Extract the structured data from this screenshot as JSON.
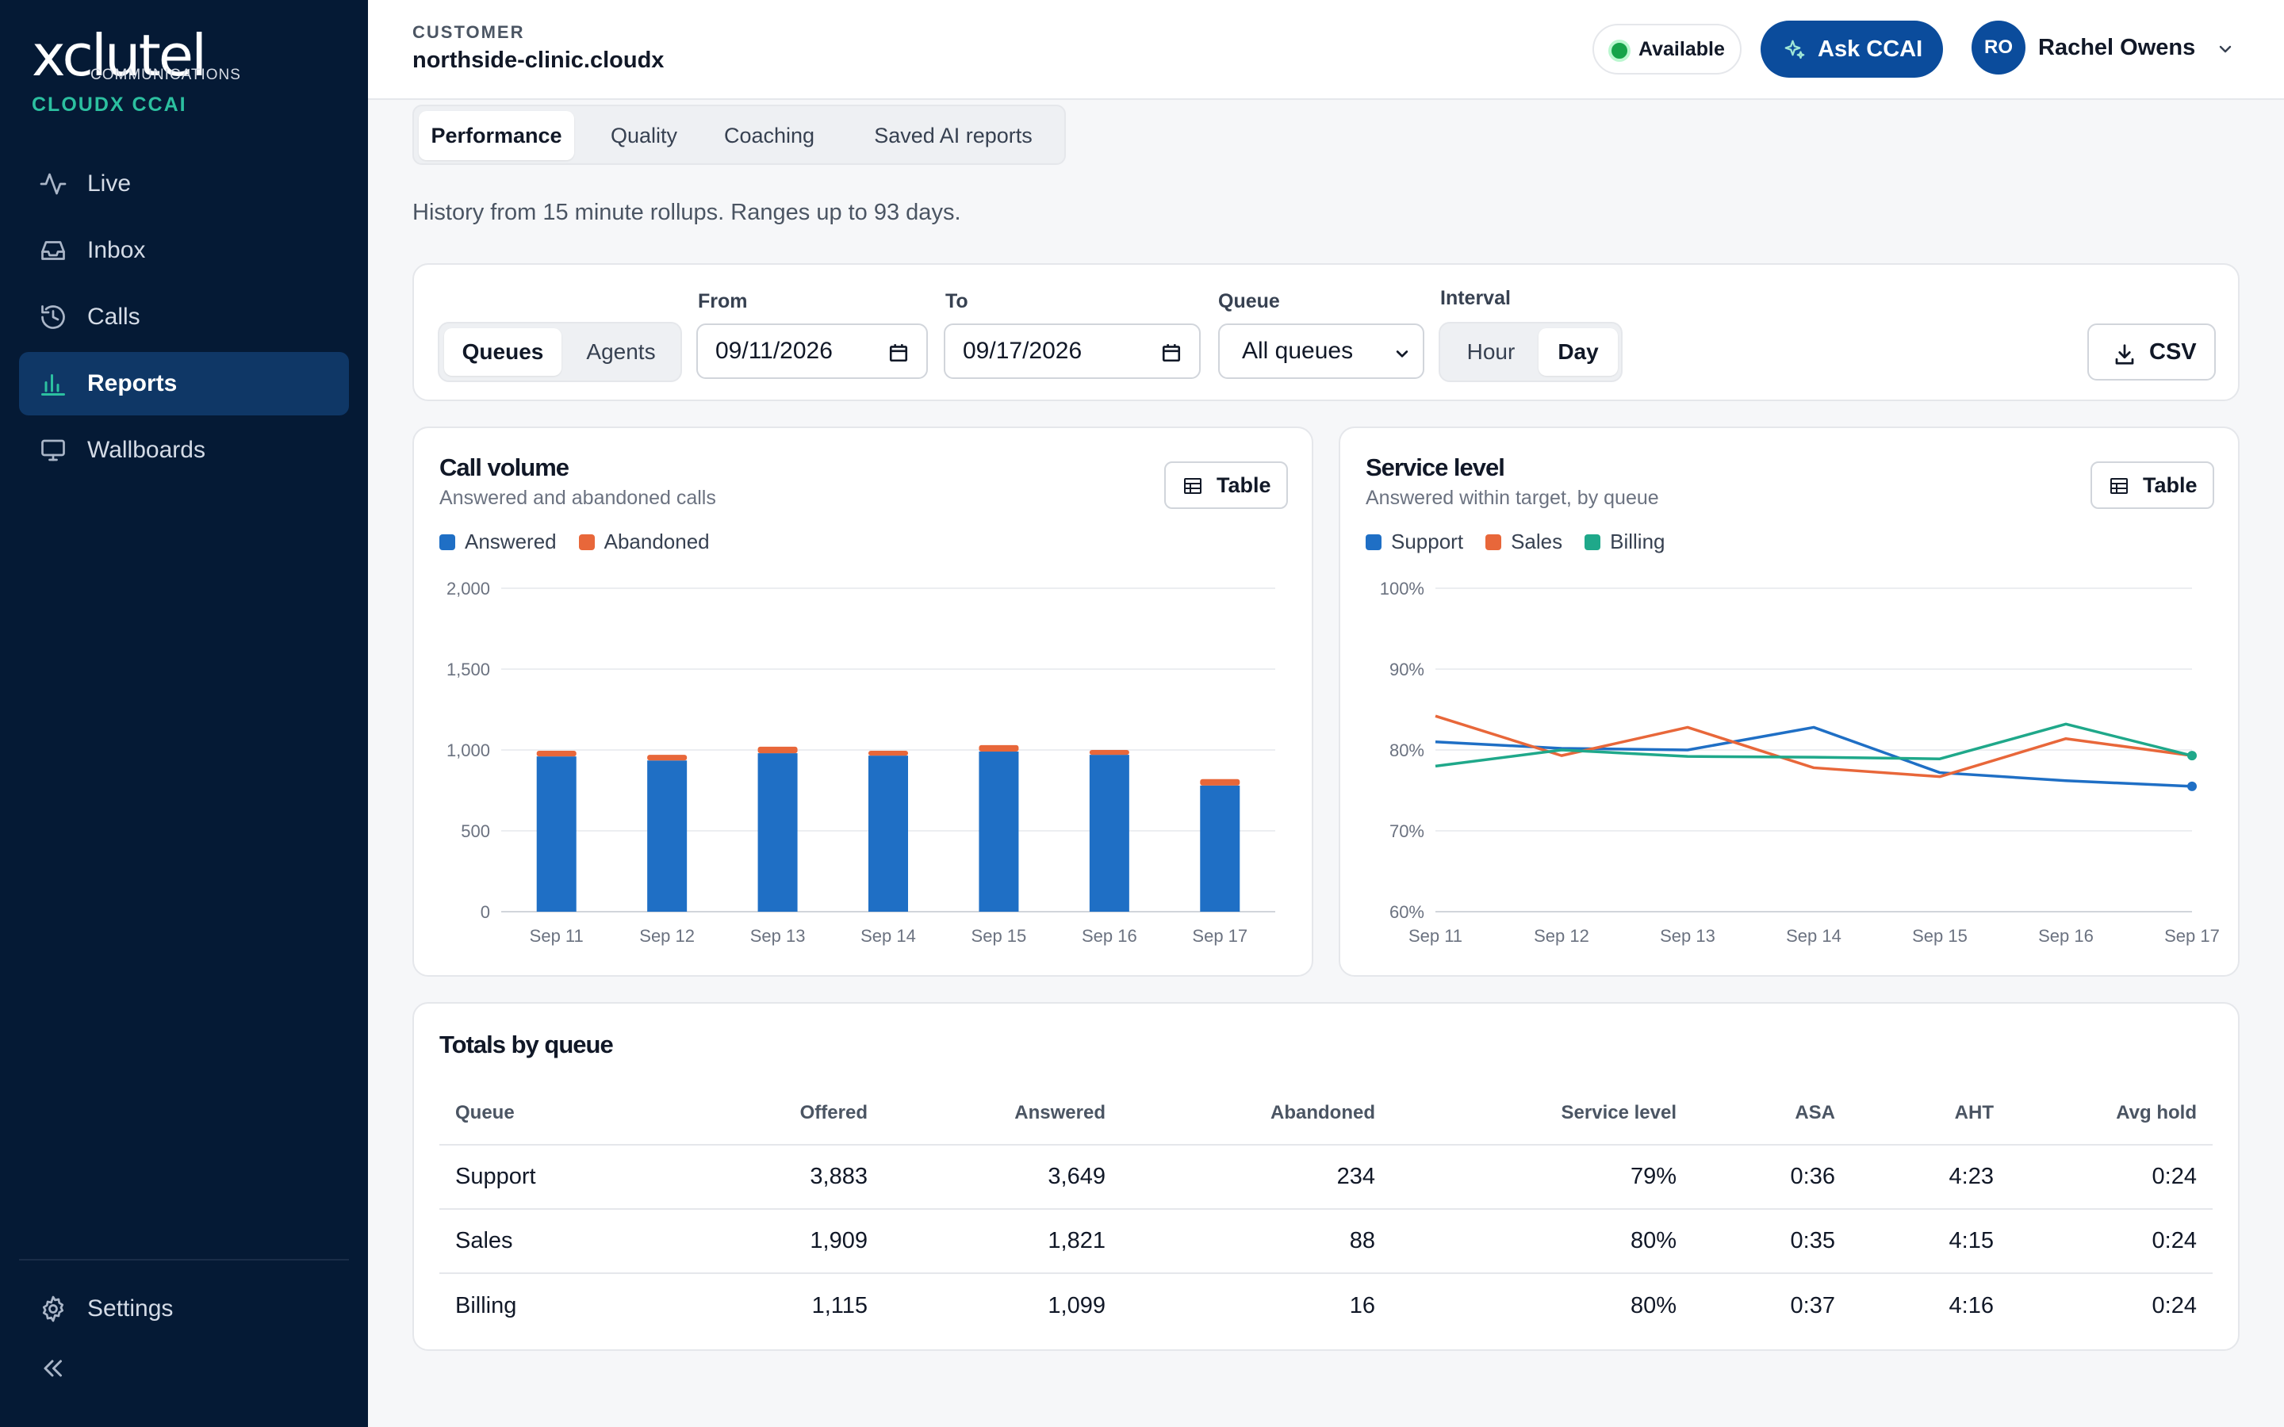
{
  "sidebar": {
    "logo_text": "xclutel",
    "logo_sub": "COMMUNICATIONS",
    "brand": "CLOUDX CCAI",
    "items": [
      {
        "label": "Live",
        "icon": "activity-icon"
      },
      {
        "label": "Inbox",
        "icon": "inbox-icon"
      },
      {
        "label": "Calls",
        "icon": "history-icon"
      },
      {
        "label": "Reports",
        "icon": "bar-chart-icon",
        "active": true
      },
      {
        "label": "Wallboards",
        "icon": "monitor-icon"
      }
    ],
    "settings_label": "Settings"
  },
  "header": {
    "customer_label": "CUSTOMER",
    "customer_name": "northside-clinic.cloudx",
    "status": "Available",
    "ask_label": "Ask CCAI",
    "avatar_initials": "RO",
    "user_name": "Rachel Owens"
  },
  "tabs": [
    "Performance",
    "Quality",
    "Coaching",
    "Saved AI reports"
  ],
  "history_note": "History from 15 minute rollups. Ranges up to 93 days.",
  "filters": {
    "mode_options": [
      "Queues",
      "Agents"
    ],
    "mode_selected": "Queues",
    "from_label": "From",
    "from_value": "09/11/2026",
    "to_label": "To",
    "to_value": "09/17/2026",
    "queue_label": "Queue",
    "queue_value": "All queues",
    "interval_label": "Interval",
    "interval_options": [
      "Hour",
      "Day"
    ],
    "interval_selected": "Day",
    "csv_label": "CSV"
  },
  "call_volume": {
    "title": "Call volume",
    "subtitle": "Answered and abandoned calls",
    "table_label": "Table",
    "colors": {
      "answered": "#1f6fc5",
      "abandoned": "#e8673a"
    },
    "chart_data": {
      "type": "bar",
      "stacked": true,
      "categories": [
        "Sep 11",
        "Sep 12",
        "Sep 13",
        "Sep 14",
        "Sep 15",
        "Sep 16",
        "Sep 17"
      ],
      "series": [
        {
          "name": "Answered",
          "values": [
            960,
            935,
            980,
            965,
            990,
            970,
            780
          ]
        },
        {
          "name": "Abandoned",
          "values": [
            35,
            35,
            40,
            30,
            40,
            30,
            40
          ]
        }
      ],
      "ylim": [
        0,
        2000
      ],
      "yticks": [
        0,
        500,
        1000,
        1500,
        2000
      ],
      "ytick_labels": [
        "0",
        "500",
        "1,000",
        "1,500",
        "2,000"
      ],
      "grid": true,
      "legend": "top-left"
    }
  },
  "service_level": {
    "title": "Service level",
    "subtitle": "Answered within target, by queue",
    "table_label": "Table",
    "colors": {
      "Support": "#1f6fc5",
      "Sales": "#e8673a",
      "Billing": "#1fa88a"
    },
    "chart_data": {
      "type": "line",
      "x": [
        "Sep 11",
        "Sep 12",
        "Sep 13",
        "Sep 14",
        "Sep 15",
        "Sep 16",
        "Sep 17"
      ],
      "series": [
        {
          "name": "Support",
          "values": [
            81,
            80.2,
            80,
            82.8,
            77.2,
            76.2,
            75.5
          ]
        },
        {
          "name": "Sales",
          "values": [
            84.2,
            79.3,
            82.8,
            77.8,
            76.7,
            81.4,
            79.3
          ]
        },
        {
          "name": "Billing",
          "values": [
            78,
            80,
            79.2,
            79.1,
            78.9,
            83.2,
            79.3
          ]
        }
      ],
      "ylim": [
        60,
        100
      ],
      "yticks": [
        60,
        70,
        80,
        90,
        100
      ],
      "ytick_labels": [
        "60%",
        "70%",
        "80%",
        "90%",
        "100%"
      ],
      "grid": true,
      "legend": "top-left"
    }
  },
  "totals": {
    "title": "Totals by queue",
    "chart_data": {
      "type": "table",
      "columns": [
        "Queue",
        "Offered",
        "Answered",
        "Abandoned",
        "Service level",
        "ASA",
        "AHT",
        "Avg hold"
      ],
      "rows": [
        [
          "Support",
          "3,883",
          "3,649",
          "234",
          "79%",
          "0:36",
          "4:23",
          "0:24"
        ],
        [
          "Sales",
          "1,909",
          "1,821",
          "88",
          "80%",
          "0:35",
          "4:15",
          "0:24"
        ],
        [
          "Billing",
          "1,115",
          "1,099",
          "16",
          "80%",
          "0:37",
          "4:16",
          "0:24"
        ]
      ]
    }
  }
}
